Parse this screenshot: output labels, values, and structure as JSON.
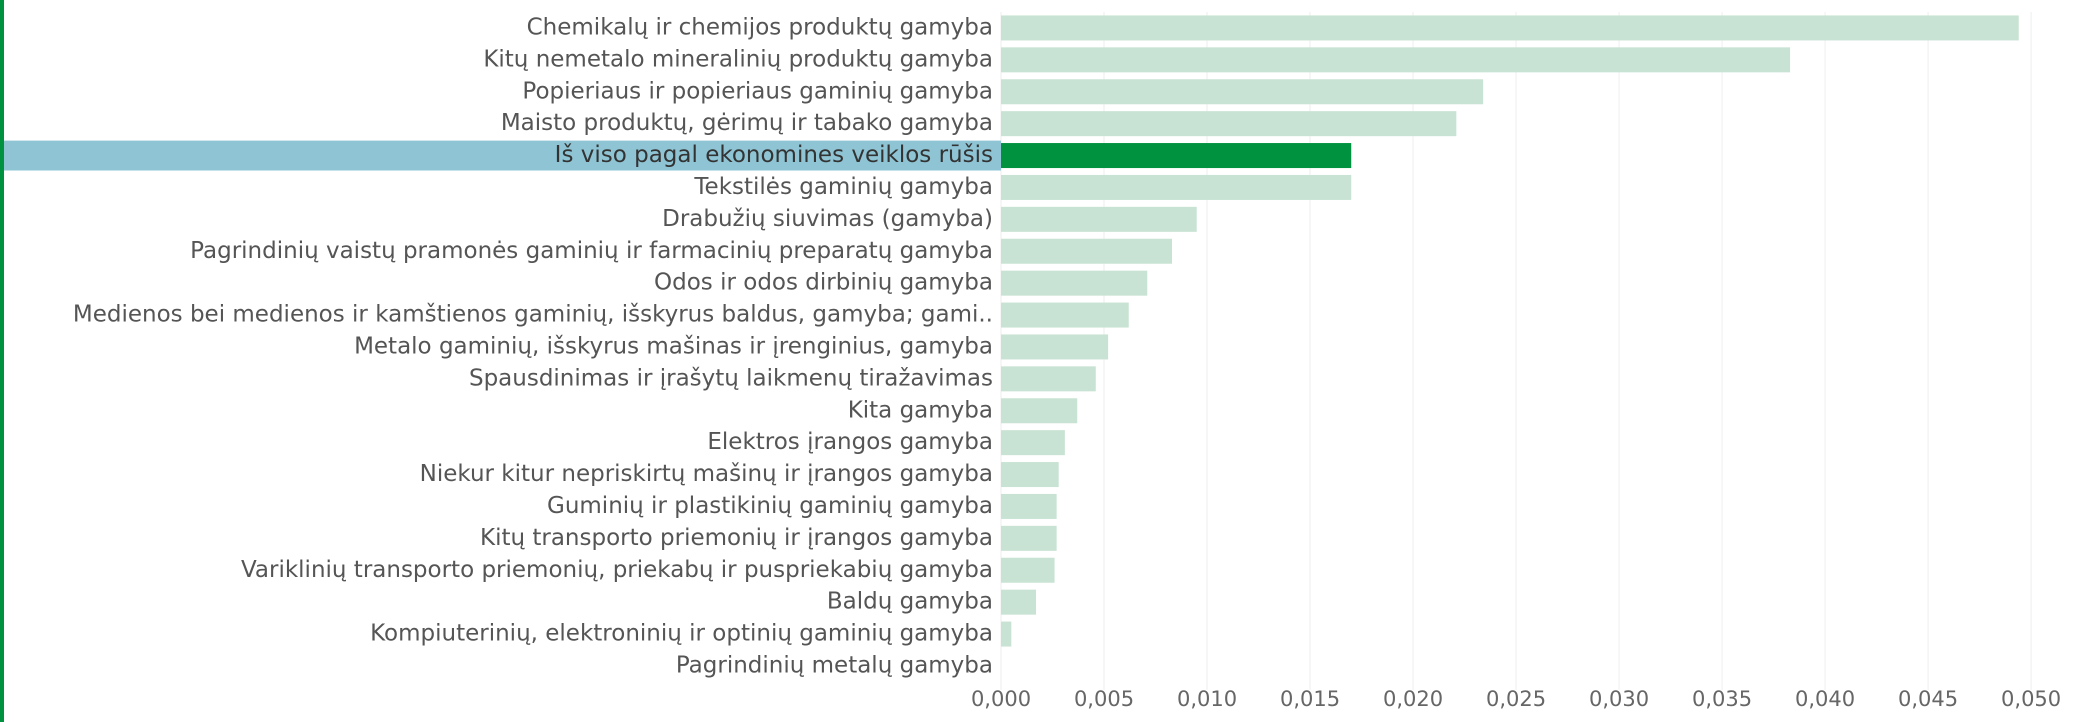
{
  "chart_data": {
    "type": "barh",
    "categories": [
      "Chemikalų ir chemijos produktų gamyba",
      "Kitų nemetalo mineralinių produktų gamyba",
      "Popieriaus ir popieriaus gaminių gamyba",
      "Maisto produktų, gėrimų ir tabako gamyba",
      "Iš viso pagal ekonomines veiklos rūšis",
      "Tekstilės gaminių gamyba",
      "Drabužių siuvimas (gamyba)",
      "Pagrindinių vaistų pramonės gaminių ir farmacinių preparatų gamyba",
      "Odos ir odos dirbinių gamyba",
      "Medienos bei medienos ir kamštienos gaminių, išskyrus baldus, gamyba; gami..",
      "Metalo gaminių, išskyrus mašinas ir įrenginius, gamyba",
      "Spausdinimas ir įrašytų laikmenų tiražavimas",
      "Kita gamyba",
      "Elektros įrangos gamyba",
      "Niekur kitur nepriskirtų mašinų ir įrangos gamyba",
      "Guminių ir plastikinių gaminių gamyba",
      "Kitų transporto priemonių ir įrangos gamyba",
      "Variklinių transporto priemonių, priekabų ir puspriekabių gamyba",
      "Baldų gamyba",
      "Kompiuterinių, elektroninių ir optinių gaminių gamyba",
      "Pagrindinių metalų gamyba"
    ],
    "values": [
      0.0494,
      0.0383,
      0.0234,
      0.0221,
      0.017,
      0.017,
      0.0095,
      0.0083,
      0.0071,
      0.0062,
      0.0052,
      0.0046,
      0.0037,
      0.0031,
      0.0028,
      0.0027,
      0.0027,
      0.0026,
      0.0017,
      0.0005,
      0
    ],
    "color": "#c8e3d3",
    "highlight": 4,
    "highlight_color": "#00923f",
    "highlight_label_color": "#8ec4d4",
    "xlim": [
      0,
      0.0515
    ],
    "xticks": [
      {
        "value": 0,
        "label": "0,000"
      },
      {
        "value": 0.005,
        "label": "0,005"
      },
      {
        "value": 0.01,
        "label": "0,010"
      },
      {
        "value": 0.015,
        "label": "0,015"
      },
      {
        "value": 0.02,
        "label": "0,020"
      },
      {
        "value": 0.025,
        "label": "0,025"
      },
      {
        "value": 0.03,
        "label": "0,030"
      },
      {
        "value": 0.035,
        "label": "0,035"
      },
      {
        "value": 0.04,
        "label": "0,040"
      },
      {
        "value": 0.045,
        "label": "0,045"
      },
      {
        "value": 0.05,
        "label": "0,050"
      }
    ],
    "grid": true
  }
}
